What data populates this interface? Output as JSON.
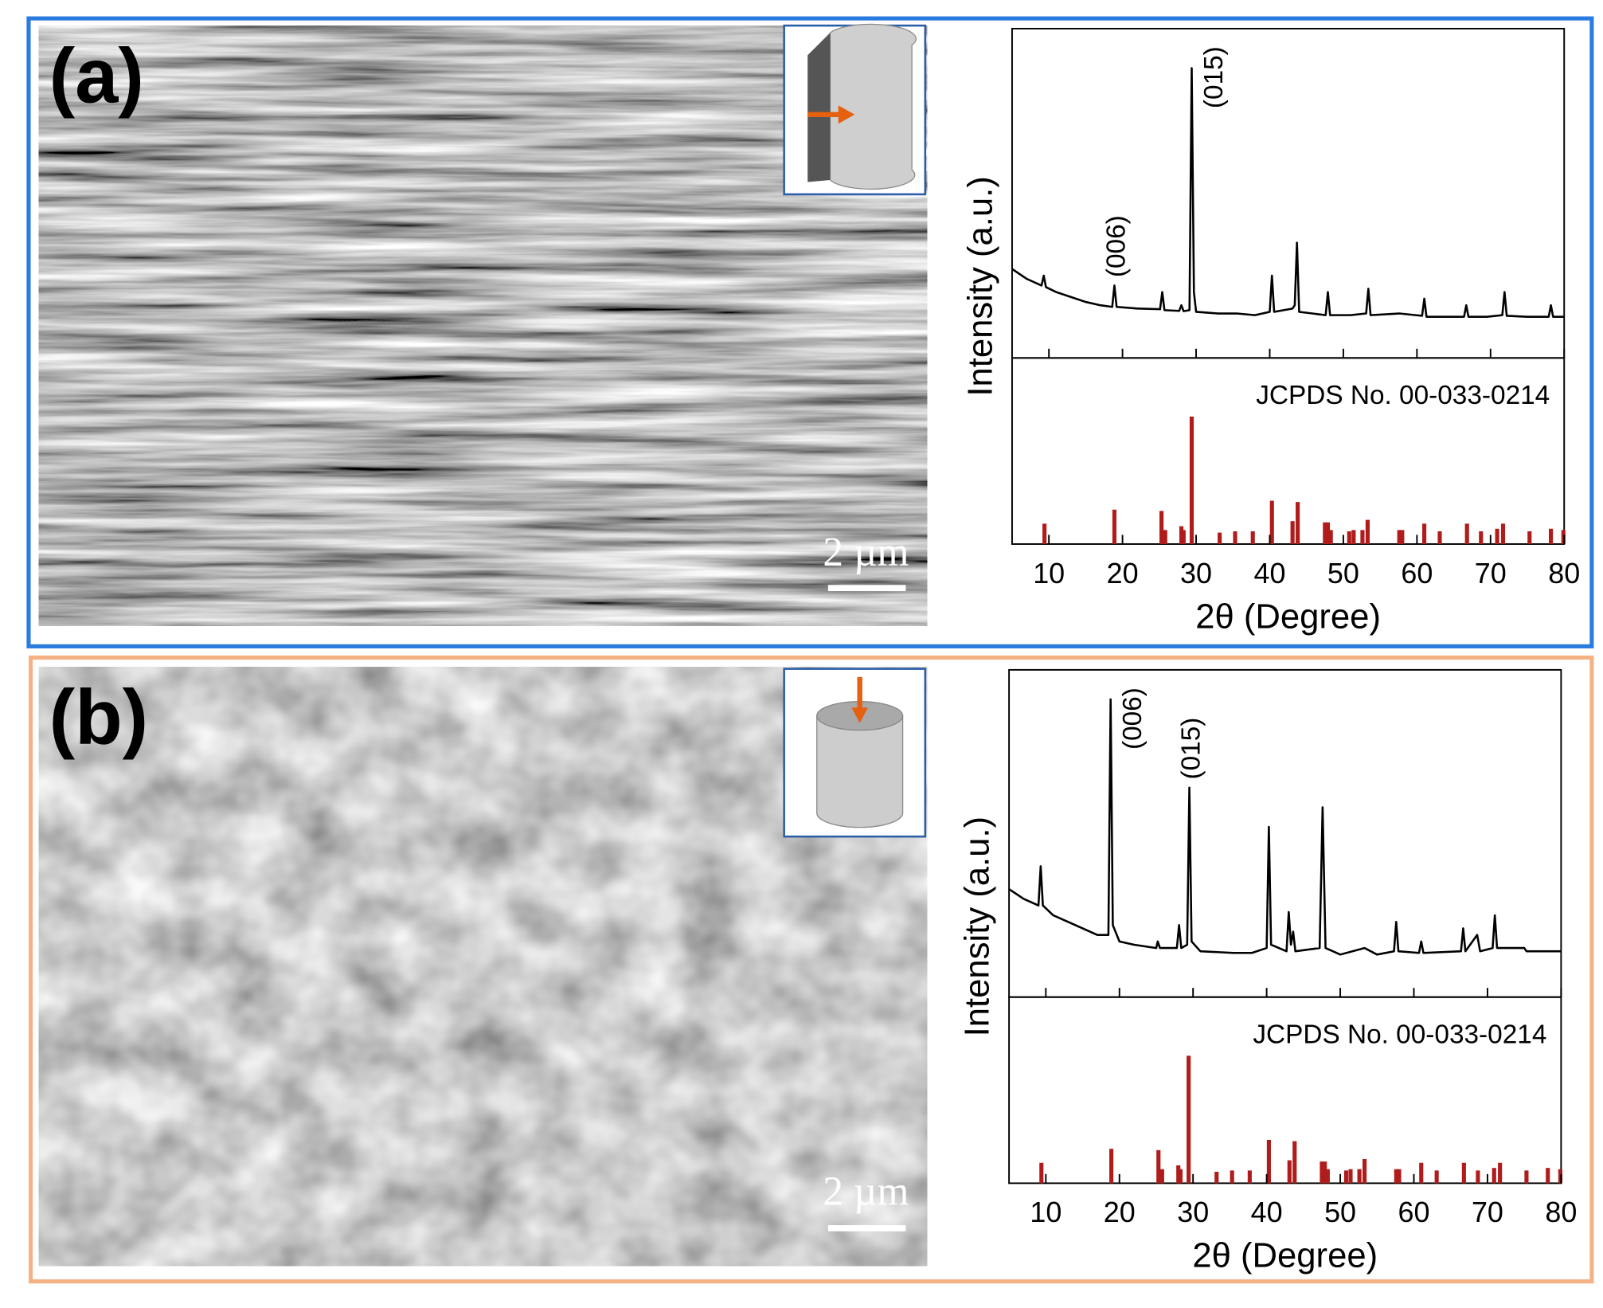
{
  "panels": [
    {
      "label": "(a)",
      "scale_bar": "2 µm"
    },
    {
      "label": "(b)",
      "scale_bar": "2 µm"
    }
  ],
  "chart_data": [
    {
      "type": "line",
      "ylabel": "Intensity (a.u.)",
      "color": "#000000",
      "xlim": [
        5,
        80
      ],
      "ylim": [
        0,
        100
      ],
      "annotations": [
        {
          "text": "(006)",
          "x": 18.9
        },
        {
          "text": "(015)",
          "x": 29.4
        }
      ],
      "x": [
        5,
        7,
        9,
        9.3,
        9.6,
        11,
        13,
        15,
        17,
        18.6,
        18.9,
        19.2,
        22,
        25.1,
        25.4,
        25.7,
        27.7,
        28,
        28.3,
        29.1,
        29.4,
        29.7,
        30,
        33,
        35.5,
        38,
        40,
        40.3,
        40.6,
        43.1,
        43.4,
        43.7,
        44,
        47.6,
        47.9,
        48.2,
        51,
        53.1,
        53.4,
        53.7,
        57.6,
        60.7,
        61,
        61.3,
        66.4,
        66.7,
        67,
        69.5,
        71.6,
        71.9,
        72.2,
        75,
        77.9,
        78.2,
        78.5,
        80
      ],
      "values": [
        27,
        24,
        22,
        25,
        21.5,
        20,
        18.5,
        17,
        16,
        15.5,
        22,
        15.5,
        15,
        14.8,
        20,
        14.5,
        14.3,
        16,
        14.2,
        14.5,
        88,
        20,
        14,
        13.5,
        13.5,
        13,
        14,
        25,
        14,
        15,
        16,
        35,
        14,
        13,
        20,
        13,
        13,
        13.5,
        21,
        13,
        13.5,
        12.8,
        18,
        12.5,
        12.5,
        16,
        12.5,
        12.5,
        13,
        20,
        12.8,
        12.5,
        12.5,
        16,
        12.5,
        12.5
      ]
    },
    {
      "type": "bar",
      "xlabel": "2θ (Degree)",
      "color": "#b01c1c",
      "xlim": [
        5,
        80
      ],
      "ylim": [
        0,
        146
      ],
      "xticks": [
        10,
        20,
        30,
        40,
        50,
        60,
        70,
        80
      ],
      "annotations": [
        {
          "text": "JCPDS No. 00-033-0214"
        }
      ],
      "x": [
        9.4,
        18.9,
        25.3,
        25.8,
        28.0,
        28.3,
        29.4,
        33.2,
        35.3,
        37.7,
        40.3,
        43.1,
        43.8,
        47.5,
        47.9,
        48.3,
        50.8,
        51.4,
        52.6,
        53.3,
        57.6,
        58.0,
        61.0,
        63.1,
        66.8,
        68.7,
        70.9,
        71.7,
        75.3,
        78.2,
        79.9
      ],
      "values": [
        16,
        27,
        26,
        11,
        14,
        11,
        100,
        9,
        10,
        10,
        34,
        18,
        33,
        17,
        17,
        11,
        10,
        11,
        11,
        19,
        11,
        11,
        16,
        10,
        16,
        10,
        12,
        16,
        10,
        12,
        11
      ]
    },
    {
      "type": "line",
      "ylabel": "Intensity (a.u.)",
      "color": "#000000",
      "xlim": [
        5,
        80
      ],
      "ylim": [
        0,
        100
      ],
      "annotations": [
        {
          "text": "(006)",
          "x": 18.8
        },
        {
          "text": "(015)",
          "x": 29.5
        }
      ],
      "x": [
        5,
        7,
        9,
        9.3,
        9.6,
        11,
        13,
        15,
        17,
        18.5,
        18.8,
        19.1,
        20,
        22,
        25,
        25.2,
        25.5,
        27.8,
        28.1,
        28.4,
        29.2,
        29.5,
        29.8,
        31,
        35.5,
        38,
        40,
        40.3,
        40.6,
        42.7,
        43,
        43.3,
        43.6,
        43.9,
        47.2,
        47.6,
        48,
        50,
        53.3,
        55,
        57.3,
        57.6,
        57.9,
        60.7,
        61,
        61.3,
        66.4,
        66.7,
        67,
        68.6,
        69,
        70.7,
        71,
        71.3,
        75,
        75.3,
        80
      ],
      "values": [
        33,
        30,
        28,
        40,
        28,
        25,
        23,
        21,
        19,
        19,
        91,
        22,
        17,
        16,
        15,
        17,
        15,
        15,
        22,
        15,
        16,
        64,
        17,
        14,
        13.5,
        13.5,
        15,
        52,
        16,
        14,
        26,
        16,
        20,
        14,
        15,
        58,
        15,
        13,
        15,
        13,
        14,
        23,
        14,
        13.5,
        17,
        13.5,
        14,
        21,
        14,
        19,
        14,
        15,
        25,
        15,
        15,
        14,
        14
      ]
    },
    {
      "type": "bar",
      "xlabel": "2θ (Degree)",
      "color": "#b01c1c",
      "xlim": [
        5,
        80
      ],
      "ylim": [
        0,
        146
      ],
      "xticks": [
        10,
        20,
        30,
        40,
        50,
        60,
        70,
        80
      ],
      "annotations": [
        {
          "text": "JCPDS No. 00-033-0214"
        }
      ],
      "x": [
        9.4,
        18.9,
        25.3,
        25.8,
        28.0,
        28.3,
        29.4,
        33.2,
        35.3,
        37.7,
        40.3,
        43.1,
        43.8,
        47.5,
        47.9,
        48.3,
        50.8,
        51.4,
        52.6,
        53.3,
        57.6,
        58.0,
        61.0,
        63.1,
        66.8,
        68.7,
        70.9,
        71.7,
        75.3,
        78.2,
        79.9
      ],
      "values": [
        16,
        27,
        26,
        11,
        14,
        11,
        100,
        9,
        10,
        10,
        34,
        18,
        33,
        17,
        17,
        11,
        10,
        11,
        11,
        19,
        11,
        11,
        16,
        10,
        16,
        10,
        12,
        16,
        10,
        12,
        11
      ]
    }
  ]
}
